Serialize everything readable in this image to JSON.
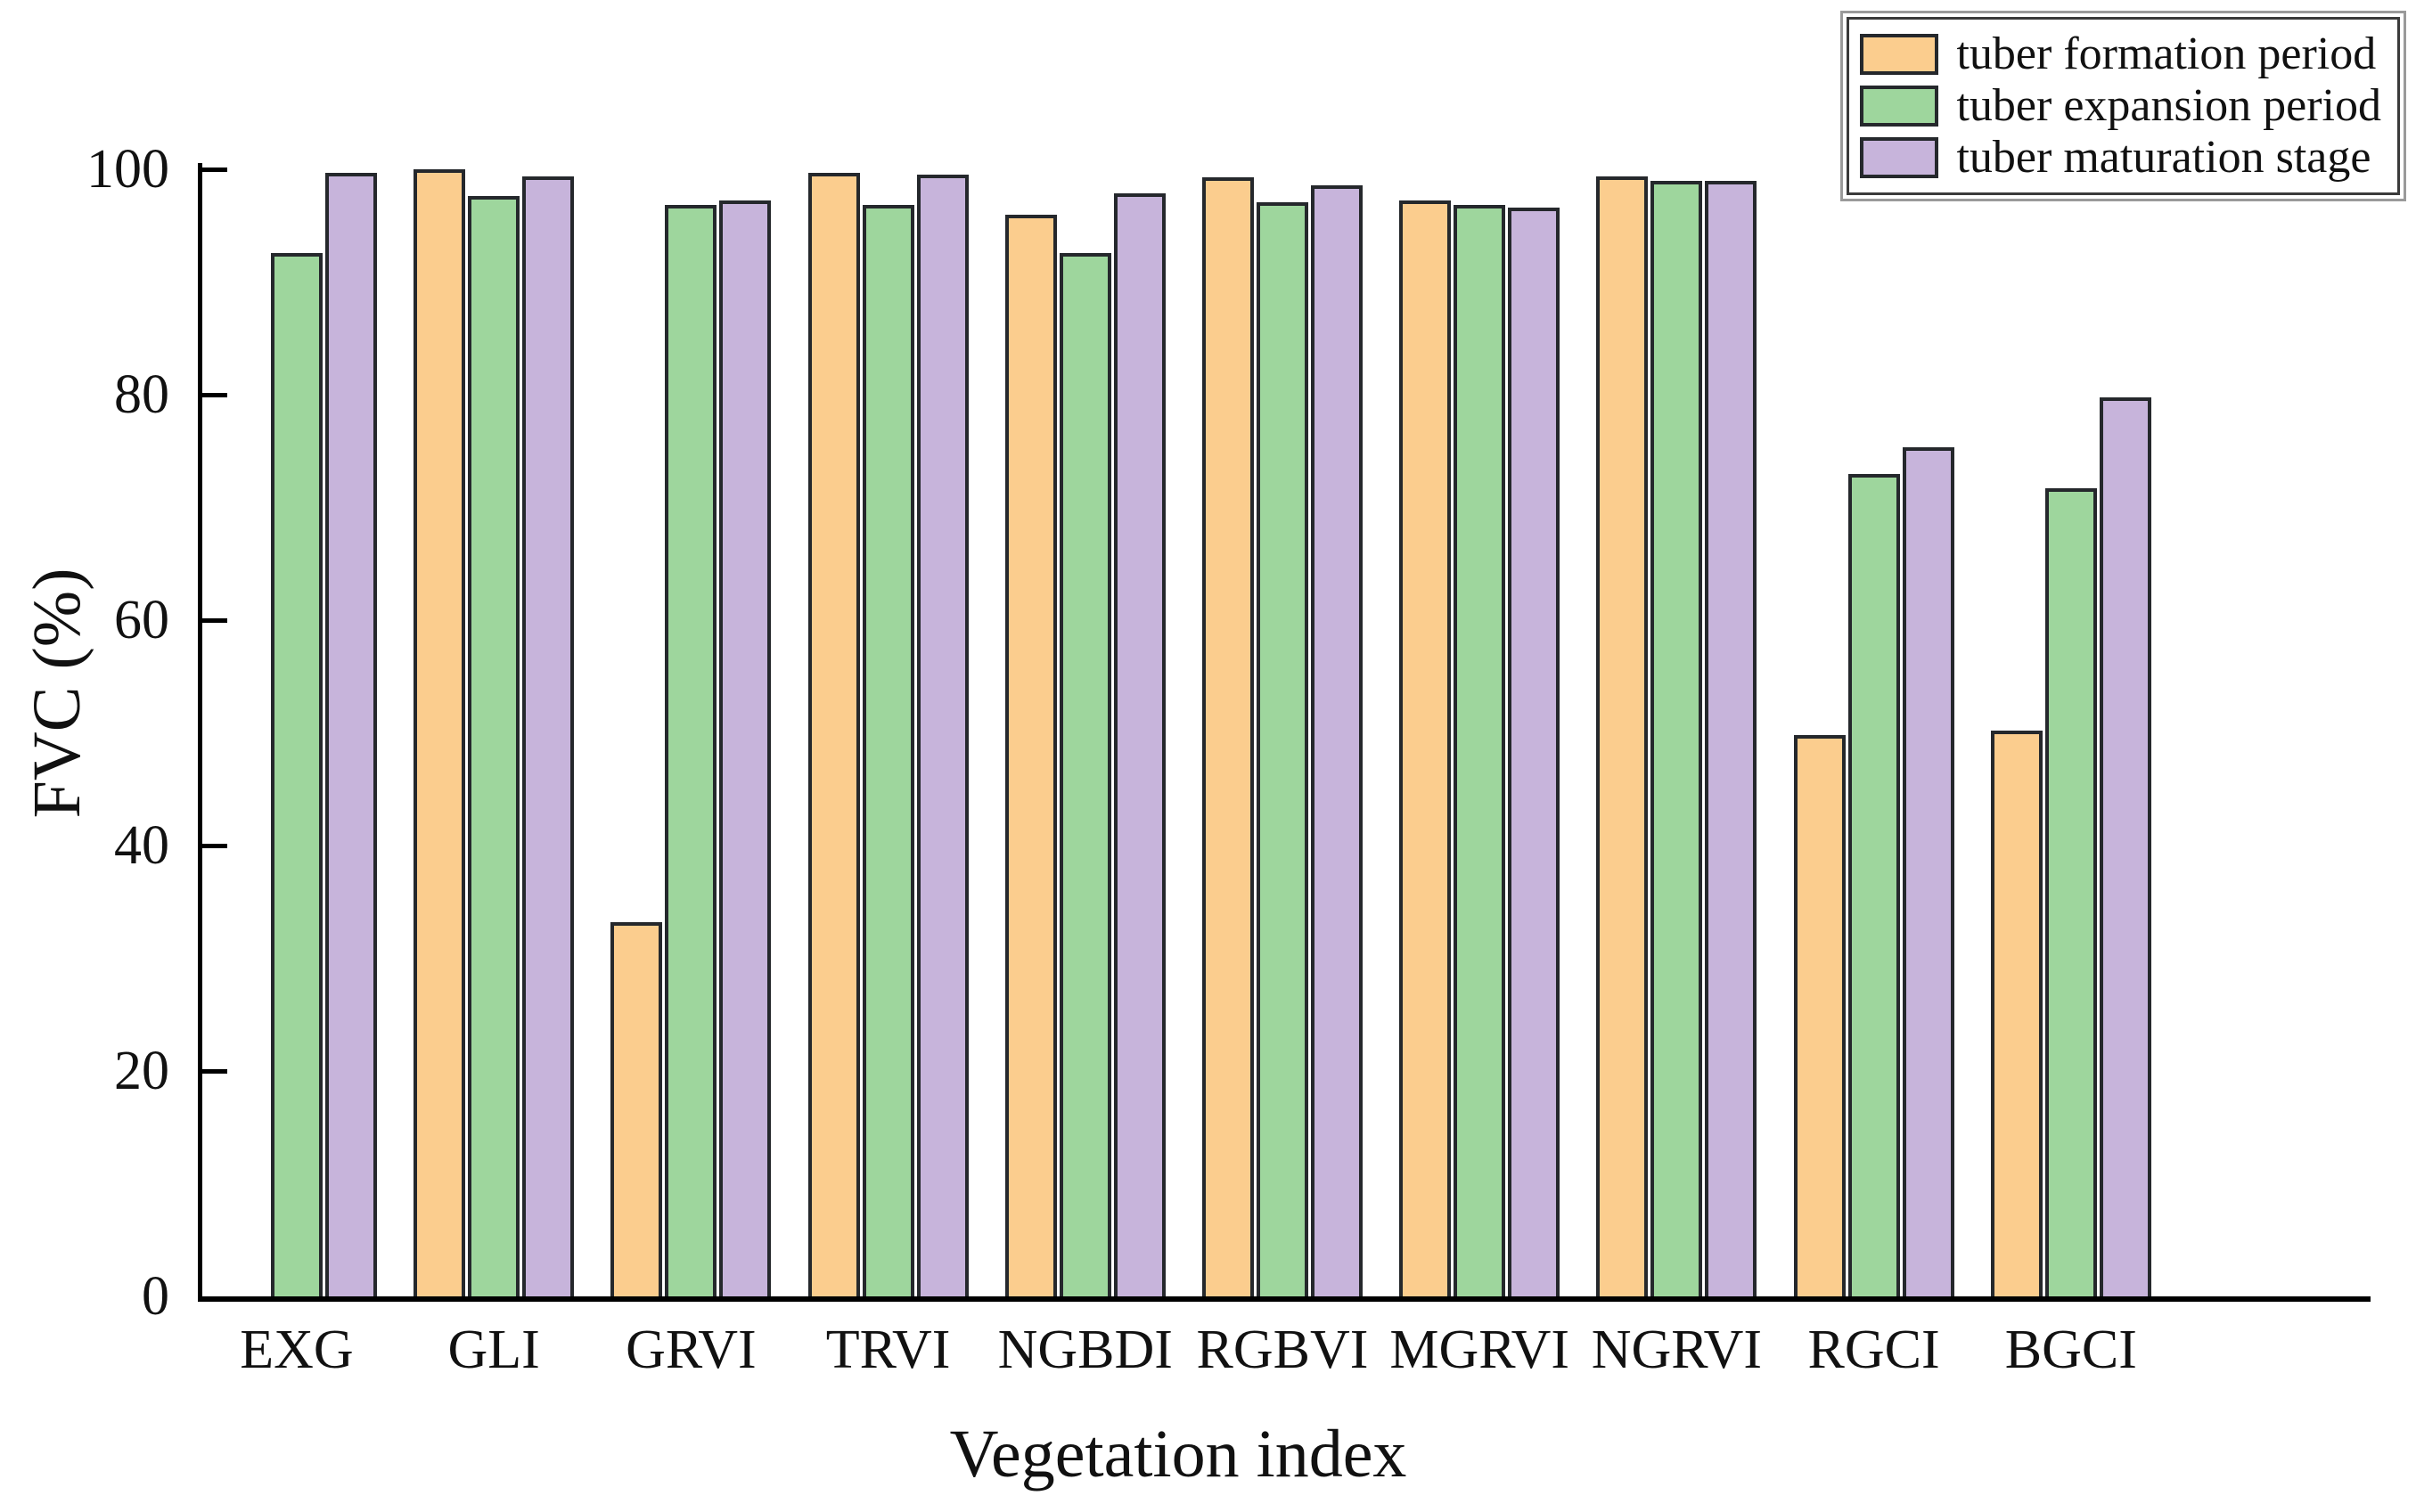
{
  "figure": {
    "background": "#ffffff",
    "axis_color": "#000000",
    "bar_border_color": "#25282c"
  },
  "chart_data": {
    "type": "bar",
    "title": "",
    "xlabel": "Vegetation index",
    "ylabel": "FVC (%)",
    "ylim": [
      0,
      100
    ],
    "yticks": [
      0,
      20,
      40,
      60,
      80,
      100
    ],
    "grid": false,
    "legend_position": "top-right",
    "categories": [
      "EXG",
      "GLI",
      "GRVI",
      "TRVI",
      "NGBDI",
      "RGBVI",
      "MGRVI",
      "NGRVI",
      "RGCI",
      "BGCI"
    ],
    "series": [
      {
        "name": "tuber formation period",
        "color": "#FBCD8E",
        "values": [
          0,
          100,
          33.2,
          99.7,
          96.0,
          99.3,
          97.2,
          99.4,
          49.8,
          50.2
        ]
      },
      {
        "name": "tuber expansion period",
        "color": "#9ED69D",
        "values": [
          92.6,
          97.6,
          96.8,
          96.8,
          92.6,
          97.1,
          96.8,
          99.0,
          73.0,
          71.7
        ]
      },
      {
        "name": "tuber maturation stage",
        "color": "#C7B4DB",
        "values": [
          99.7,
          99.4,
          97.2,
          99.5,
          97.9,
          98.6,
          96.6,
          99.0,
          75.3,
          79.8
        ]
      }
    ]
  }
}
